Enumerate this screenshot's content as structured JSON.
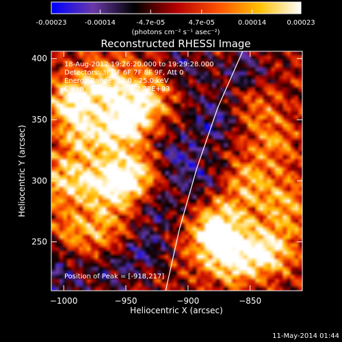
{
  "chart_data": {
    "type": "heatmap",
    "title": "Reconstructed RHESSI Image",
    "xlabel": "Heliocentric X (arcsec)",
    "ylabel": "Heliocentric Y (arcsec)",
    "xlim": [
      -1010,
      -808
    ],
    "ylim": [
      210,
      406
    ],
    "xticks": [
      -1000,
      -950,
      -900,
      -850
    ],
    "yticks": [
      250,
      300,
      350,
      400
    ],
    "colorbar": {
      "range": [
        -0.00023,
        0.00023
      ],
      "tick_labels": [
        "-0.00023",
        "-0.00014",
        "-4.7e-05",
        "4.7e-05",
        "0.00014",
        "0.00023"
      ],
      "tick_values": [
        -0.00023,
        -0.00014,
        -4.7e-05,
        4.7e-05,
        0.00014,
        0.00023
      ],
      "units": "(photons cm⁻² s⁻¹ asec⁻²)",
      "colors": [
        "#0000ff",
        "#6a3aa8",
        "#000000",
        "#b30000",
        "#ff5000",
        "#ffc000",
        "#ffffff"
      ]
    },
    "annotations": {
      "time_range": "18-Aug-2012 19:26:20.000 to 19:29:28.000",
      "detectors": "Detectors: 3F 5F 6F 7F 8F 9F, Att 0",
      "energy": "Energy Range: 12.0 - 25.0 keV",
      "clean": "Clean - Total counts: 2.28E+03",
      "peak": "Position of Peak = [-918,217]"
    },
    "solar_limb": [
      [
        -918,
        210
      ],
      [
        -907,
        260
      ],
      [
        -893,
        310
      ],
      [
        -876,
        360
      ],
      [
        -856,
        406
      ]
    ],
    "bright_regions": [
      {
        "x": -993,
        "y": 365,
        "amp": 0.00023
      },
      {
        "x": -965,
        "y": 380,
        "amp": 0.0002
      },
      {
        "x": -945,
        "y": 357,
        "amp": 0.00023
      },
      {
        "x": -957,
        "y": 340,
        "amp": 0.00016
      },
      {
        "x": -985,
        "y": 335,
        "amp": 0.00015
      },
      {
        "x": -1000,
        "y": 300,
        "amp": 0.00017
      },
      {
        "x": -950,
        "y": 300,
        "amp": 0.00021
      },
      {
        "x": -970,
        "y": 298,
        "amp": 0.00016
      },
      {
        "x": -995,
        "y": 255,
        "amp": 0.00014
      },
      {
        "x": -965,
        "y": 260,
        "amp": 0.00012
      },
      {
        "x": -935,
        "y": 305,
        "amp": 0.0001
      },
      {
        "x": -925,
        "y": 375,
        "amp": 0.00012
      },
      {
        "x": -870,
        "y": 270,
        "amp": 0.00016
      },
      {
        "x": -850,
        "y": 300,
        "amp": 0.00013
      },
      {
        "x": -880,
        "y": 250,
        "amp": 0.00023
      },
      {
        "x": -860,
        "y": 235,
        "amp": 0.00022
      },
      {
        "x": -835,
        "y": 245,
        "amp": 0.00021
      },
      {
        "x": -820,
        "y": 280,
        "amp": 0.00014
      },
      {
        "x": -830,
        "y": 330,
        "amp": 0.0001
      },
      {
        "x": -845,
        "y": 360,
        "amp": 9e-05
      }
    ],
    "dark_regions": [
      {
        "x": -880,
        "y": 350,
        "amp": -0.00014
      },
      {
        "x": -910,
        "y": 320,
        "amp": -0.00013
      },
      {
        "x": -935,
        "y": 245,
        "amp": -0.00012
      },
      {
        "x": -925,
        "y": 280,
        "amp": -0.00011
      },
      {
        "x": -890,
        "y": 300,
        "amp": -0.0001
      },
      {
        "x": -905,
        "y": 390,
        "amp": -0.00012
      },
      {
        "x": -1005,
        "y": 240,
        "amp": -0.0001
      },
      {
        "x": -960,
        "y": 225,
        "amp": -0.0001
      },
      {
        "x": -855,
        "y": 390,
        "amp": -0.00012
      },
      {
        "x": -1000,
        "y": 215,
        "amp": -9e-05
      }
    ]
  },
  "footer": {
    "timestamp": "11-May-2014 01:44"
  }
}
